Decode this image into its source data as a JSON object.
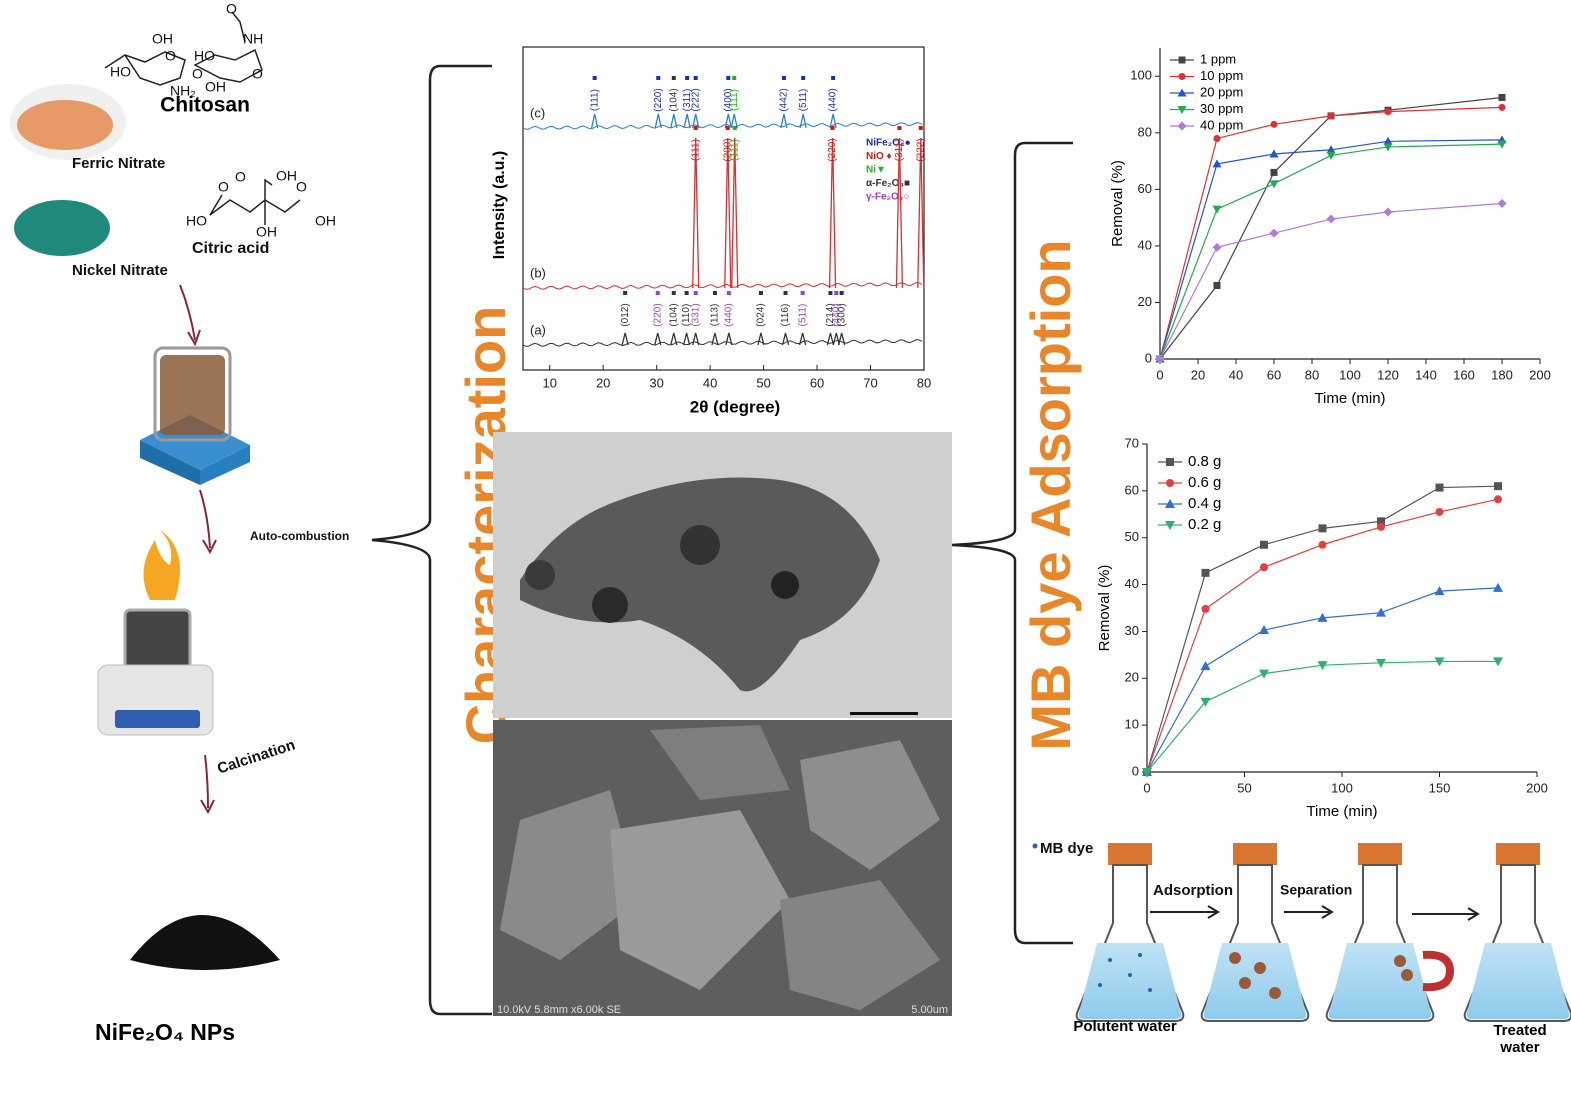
{
  "synthesis": {
    "chitosan": "Chitosan",
    "chitosan_atoms": [
      "O",
      "NH",
      "OH",
      "HO",
      "O",
      "HO",
      "O",
      "NH₂",
      "OH",
      "O"
    ],
    "ferric": "Ferric Nitrate",
    "nickel": "Nickel Nitrate",
    "citric": "Citric acid",
    "citric_atoms": [
      "O",
      "OH",
      "O",
      "O",
      "HO",
      "OH",
      "OH"
    ],
    "auto": "Auto-combustion",
    "calcination": "Calcination",
    "product": "NiFe₂O₄ NPs"
  },
  "characterization": {
    "title": "Characterization",
    "xrd": {
      "type": "xrd",
      "xlabel": "2θ (degree)",
      "ylabel": "Intensity (a.u.)",
      "xlim": [
        5,
        80
      ],
      "xticks": [
        10,
        20,
        30,
        40,
        50,
        60,
        70,
        80
      ],
      "legend": [
        {
          "name": "NiFe₂O₄●",
          "color": "#1a2fb0"
        },
        {
          "name": "NiO ♦",
          "color": "#d01818"
        },
        {
          "name": "Ni▼",
          "color": "#18b818"
        },
        {
          "name": "α-Fe₂O₃■",
          "color": "#333333"
        },
        {
          "name": "γ-Fe₂O₃○",
          "color": "#9a3fd0"
        }
      ],
      "traces": [
        {
          "label": "(c)",
          "color": "#2a7fd8",
          "peaks": [
            {
              "x": 18.4,
              "label": "(111)",
              "color": "#1a2fb0"
            },
            {
              "x": 30.3,
              "label": "(220)",
              "color": "#1a2fb0"
            },
            {
              "x": 33.2,
              "label": "(104)",
              "color": "#333333"
            },
            {
              "x": 35.7,
              "label": "(311)",
              "color": "#1a2fb0"
            },
            {
              "x": 37.3,
              "label": "(222)",
              "color": "#1a2fb0"
            },
            {
              "x": 43.4,
              "label": "(400)",
              "color": "#1a2fb0"
            },
            {
              "x": 44.5,
              "label": "(111)",
              "color": "#18b818"
            },
            {
              "x": 53.8,
              "label": "(442)",
              "color": "#1a2fb0"
            },
            {
              "x": 57.4,
              "label": "(511)",
              "color": "#1a2fb0"
            },
            {
              "x": 63.0,
              "label": "(440)",
              "color": "#1a2fb0"
            }
          ]
        },
        {
          "label": "(b)",
          "color": "#d83030",
          "peaks": [
            {
              "x": 37.3,
              "label": "(111)",
              "color": "#d01818"
            },
            {
              "x": 43.3,
              "label": "(200)",
              "color": "#d01818"
            },
            {
              "x": 44.6,
              "label": "(111)",
              "color": "#18b818"
            },
            {
              "x": 62.9,
              "label": "(220)",
              "color": "#d01818"
            },
            {
              "x": 75.4,
              "label": "(311)",
              "color": "#d01818"
            },
            {
              "x": 79.4,
              "label": "(222)",
              "color": "#d01818"
            }
          ]
        },
        {
          "label": "(a)",
          "color": "#333333",
          "peaks": [
            {
              "x": 24.1,
              "label": "(012)",
              "color": "#333333"
            },
            {
              "x": 30.2,
              "label": "(220)",
              "color": "#9a3fd0"
            },
            {
              "x": 33.2,
              "label": "(104)",
              "color": "#333333"
            },
            {
              "x": 35.6,
              "label": "(110)",
              "color": "#333333"
            },
            {
              "x": 37.3,
              "label": "(331)",
              "color": "#9a3fd0"
            },
            {
              "x": 40.9,
              "label": "(113)",
              "color": "#333333"
            },
            {
              "x": 43.5,
              "label": "(440)",
              "color": "#9a3fd0"
            },
            {
              "x": 49.5,
              "label": "(024)",
              "color": "#333333"
            },
            {
              "x": 54.1,
              "label": "(116)",
              "color": "#333333"
            },
            {
              "x": 57.3,
              "label": "(511)",
              "color": "#9a3fd0"
            },
            {
              "x": 62.5,
              "label": "(214)",
              "color": "#333333"
            },
            {
              "x": 63.6,
              "label": "(440)",
              "color": "#9a3fd0"
            },
            {
              "x": 64.6,
              "label": "(300)",
              "color": "#333333"
            }
          ]
        }
      ]
    },
    "sem_info": "10.0kV 5.8mm x6.00k SE",
    "sem_scale": "5.00um"
  },
  "adsorption": {
    "title": "MB dye Adsorption",
    "charts": [
      {
        "type": "line",
        "xlabel": "Time (min)",
        "ylabel": "Removal (%)",
        "xlim": [
          0,
          200
        ],
        "xticks": [
          0,
          20,
          40,
          60,
          80,
          100,
          120,
          140,
          160,
          180,
          200
        ],
        "ylim": [
          0,
          110
        ],
        "yticks": [
          0,
          20,
          40,
          60,
          80,
          100
        ],
        "x": [
          0,
          30,
          60,
          90,
          120,
          180
        ],
        "series": [
          {
            "name": "1 ppm",
            "color": "#444444",
            "values": [
              0,
              26,
              66,
              86,
              88,
              92.5
            ]
          },
          {
            "name": "10 ppm",
            "color": "#e03030",
            "values": [
              0,
              78,
              83,
              86,
              87.5,
              89
            ]
          },
          {
            "name": "20 ppm",
            "color": "#2255cc",
            "values": [
              0,
              69,
              72.5,
              74,
              77,
              77.5
            ]
          },
          {
            "name": "30 ppm",
            "color": "#22aa55",
            "values": [
              0,
              53,
              62,
              72,
              75,
              76
            ]
          },
          {
            "name": "40 ppm",
            "color": "#b07ad8",
            "values": [
              0,
              39.5,
              44.5,
              49.5,
              52,
              55
            ]
          }
        ]
      },
      {
        "type": "line",
        "xlabel": "Time (min)",
        "ylabel": "Removal (%)",
        "xlim": [
          0,
          200
        ],
        "xticks": [
          0,
          50,
          100,
          150,
          200
        ],
        "ylim": [
          0,
          70
        ],
        "yticks": [
          0,
          10,
          20,
          30,
          40,
          50,
          60,
          70
        ],
        "x": [
          0,
          30,
          60,
          90,
          120,
          150,
          180
        ],
        "series": [
          {
            "name": "0.8 g",
            "color": "#555555",
            "values": [
              0,
              42.5,
              48.5,
              52,
              53.5,
              60.7,
              61
            ]
          },
          {
            "name": "0.6 g",
            "color": "#e04040",
            "values": [
              0,
              34.8,
              43.7,
              48.5,
              52.3,
              55.5,
              58.2
            ]
          },
          {
            "name": "0.4 g",
            "color": "#3070d0",
            "values": [
              0,
              22.6,
              30.3,
              32.9,
              34,
              38.6,
              39.3
            ]
          },
          {
            "name": "0.2 g",
            "color": "#30b070",
            "values": [
              0,
              15,
              21,
              22.8,
              23.3,
              23.6,
              23.6
            ]
          }
        ]
      }
    ],
    "process": {
      "dye": "MB dye",
      "step1": "Adsorption",
      "step2": "Separation",
      "start": "Polutent water",
      "end": "Treated water"
    }
  }
}
